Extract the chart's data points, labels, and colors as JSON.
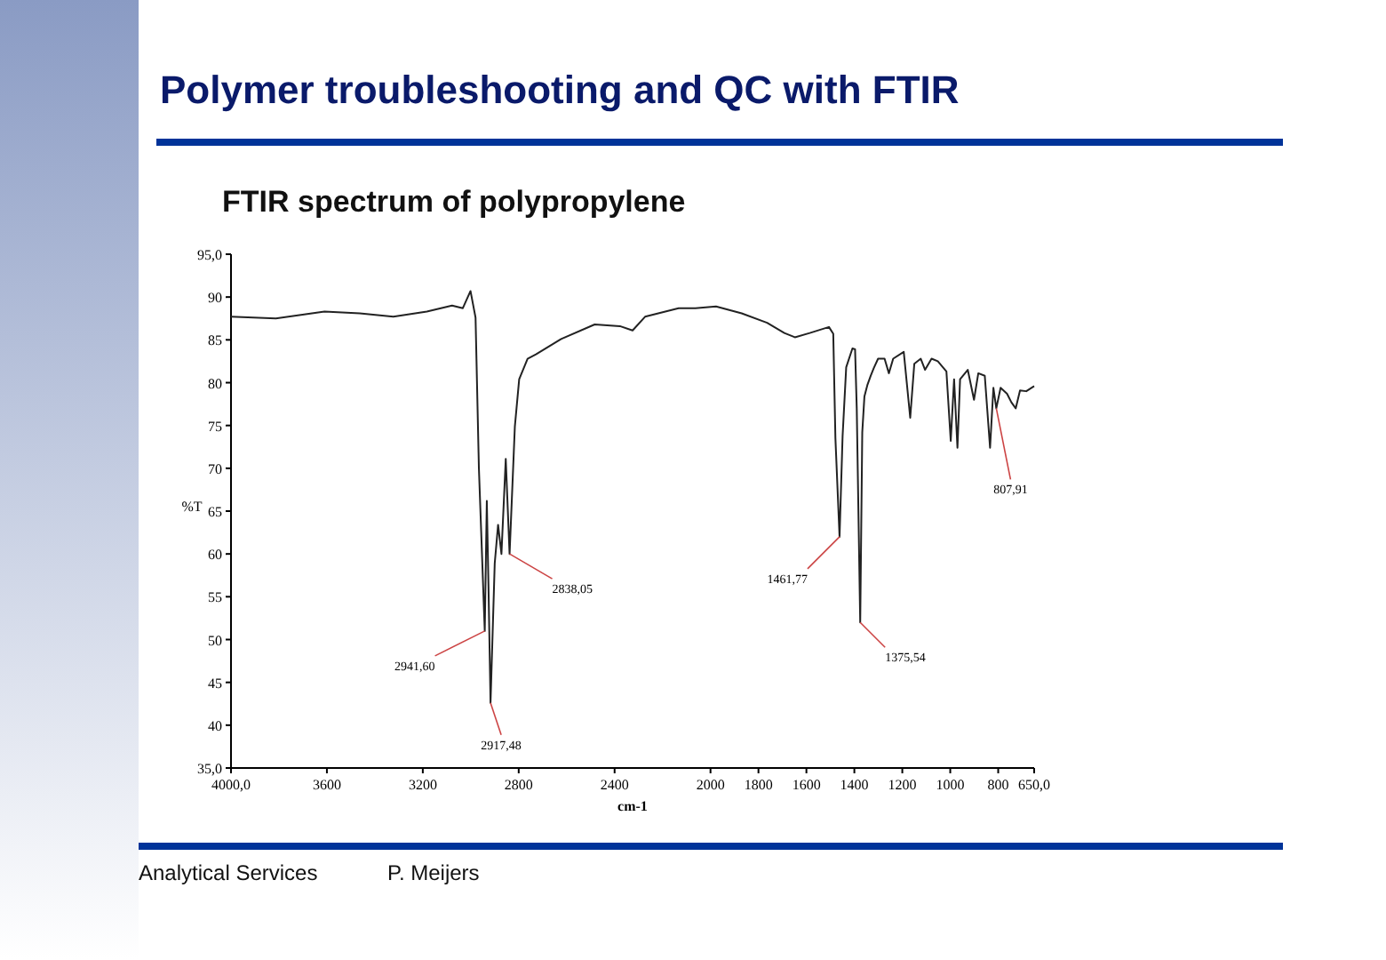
{
  "chart_data": {
    "type": "line",
    "title": "Polymer troubleshooting and QC with FTIR",
    "subtitle": "FTIR spectrum of polypropylene",
    "xlabel": "cm-1",
    "ylabel": "%T",
    "xlim": [
      4000,
      650
    ],
    "ylim": [
      35,
      95
    ],
    "xticks": [
      {
        "value": 4000,
        "label": "4000,0"
      },
      3600,
      3200,
      2800,
      2400,
      2000,
      1800,
      1600,
      1400,
      1200,
      1000,
      800,
      {
        "value": 650,
        "label": "650,0"
      }
    ],
    "yticks": [
      {
        "value": 35,
        "label": "35,0"
      },
      40,
      45,
      50,
      55,
      60,
      65,
      70,
      75,
      80,
      85,
      90,
      {
        "value": 95,
        "label": "95,0"
      }
    ],
    "grid": false,
    "marker": "none",
    "line_style": "solid",
    "series": [
      {
        "color": "#222222",
        "x": [
          4000,
          3813,
          3610,
          3463,
          3323,
          3183,
          3078,
          3033,
          3001,
          2980,
          2966,
          2941.6,
          2933,
          2926,
          2917.48,
          2900,
          2886,
          2872,
          2854,
          2838.05,
          2816,
          2798,
          2763,
          2728,
          2623,
          2483,
          2378,
          2325,
          2273,
          2133,
          2063,
          1977,
          1870,
          1764,
          1692,
          1648,
          1586,
          1506,
          1488,
          1479,
          1461.77,
          1449,
          1434,
          1408,
          1397,
          1390,
          1375.54,
          1367,
          1358,
          1346,
          1332,
          1319,
          1301,
          1274,
          1256,
          1238,
          1194,
          1167,
          1150,
          1123,
          1105,
          1078,
          1052,
          1016,
          998,
          984,
          970,
          959,
          927,
          901,
          883,
          856,
          834,
          820,
          807.91,
          790,
          763,
          745,
          727,
          709,
          683,
          650
        ],
        "values": [
          87.7,
          87.5,
          88.3,
          88.1,
          87.7,
          88.3,
          89.0,
          88.7,
          90.7,
          87.6,
          70.0,
          51.0,
          66.2,
          56.2,
          42.6,
          58.9,
          63.4,
          60.0,
          71.1,
          60.0,
          74.9,
          80.4,
          82.8,
          83.3,
          85.1,
          86.8,
          86.6,
          86.1,
          87.7,
          88.7,
          88.7,
          88.9,
          88.1,
          87.0,
          85.8,
          85.3,
          85.8,
          86.5,
          85.7,
          73.5,
          62.0,
          73.8,
          81.8,
          84.0,
          83.9,
          77.0,
          52.0,
          74.2,
          78.4,
          79.7,
          80.8,
          81.7,
          82.8,
          82.8,
          81.1,
          82.8,
          83.6,
          75.9,
          82.2,
          82.8,
          81.5,
          82.8,
          82.5,
          81.3,
          73.2,
          80.4,
          72.4,
          80.4,
          81.5,
          78.0,
          81.1,
          80.8,
          72.4,
          79.4,
          77.0,
          79.4,
          78.7,
          77.7,
          77.0,
          79.1,
          79.0,
          79.6
        ]
      }
    ],
    "annotations": [
      {
        "text": "2941,60",
        "x": 2941.6,
        "y": 51
      },
      {
        "text": "2917,48",
        "x": 2917.48,
        "y": 42.6
      },
      {
        "text": "2838,05",
        "x": 2838.05,
        "y": 60
      },
      {
        "text": "1461,77",
        "x": 1461.77,
        "y": 62
      },
      {
        "text": "1375,54",
        "x": 1375.54,
        "y": 52
      },
      {
        "text": "807,91",
        "x": 807.91,
        "y": 77
      },
      "Analytical Services",
      "P. Meijers"
    ]
  }
}
